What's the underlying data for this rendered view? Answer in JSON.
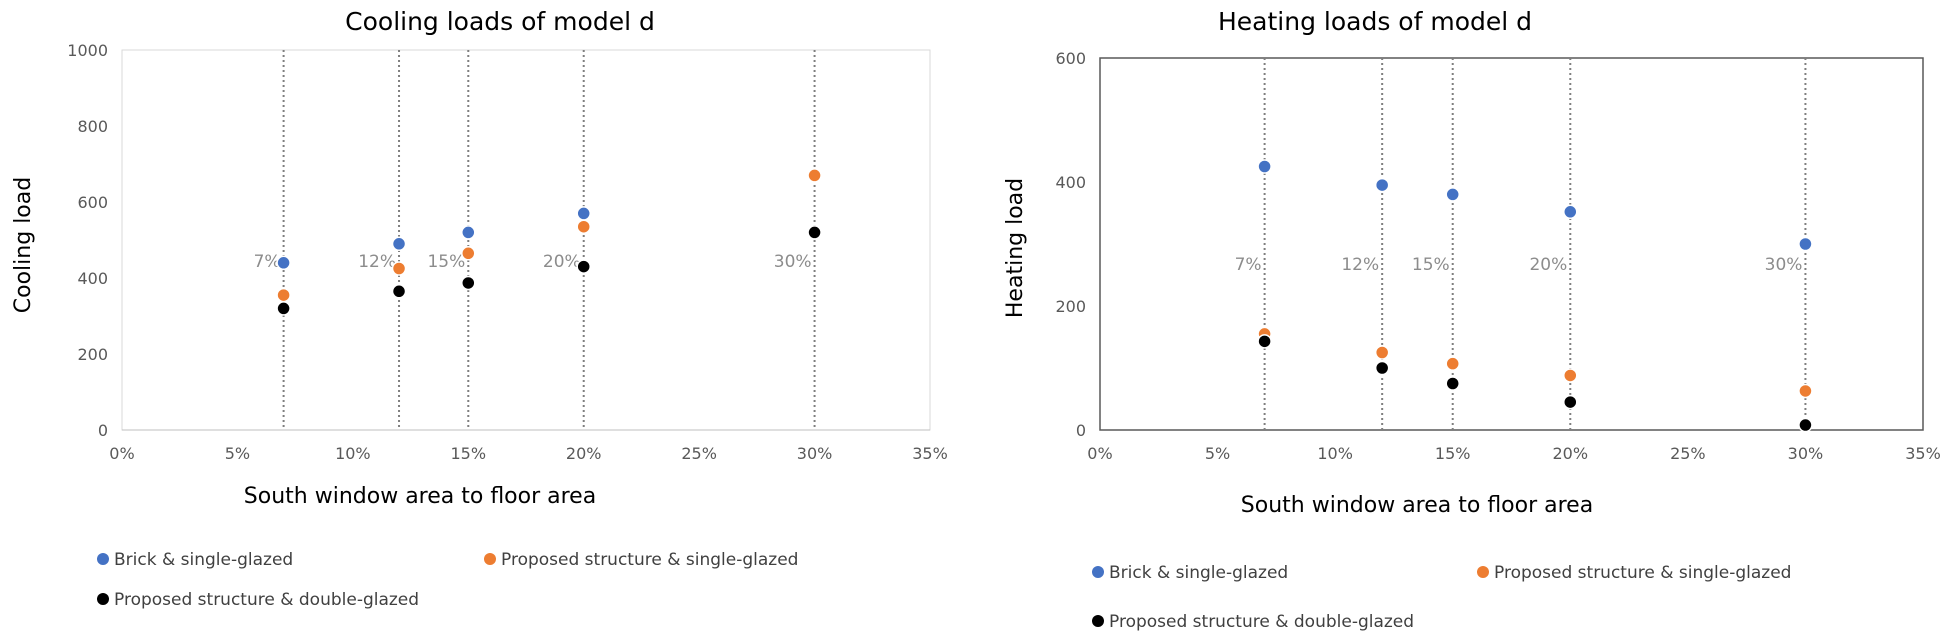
{
  "chart_data": [
    {
      "type": "scatter",
      "title": "Cooling loads of model d",
      "xlabel": "South window area to floor area",
      "ylabel": "Cooling load",
      "xlim": [
        0,
        35
      ],
      "ylim": [
        0,
        1000
      ],
      "x_ticks": [
        "0%",
        "5%",
        "10%",
        "15%",
        "20%",
        "25%",
        "30%",
        "35%"
      ],
      "x_tick_values": [
        0,
        5,
        10,
        15,
        20,
        25,
        30,
        35
      ],
      "y_ticks": [
        "0",
        "200",
        "400",
        "600",
        "800",
        "1000"
      ],
      "y_tick_values": [
        0,
        200,
        400,
        600,
        800,
        1000
      ],
      "grid": false,
      "legend_position": "bottom",
      "reference_lines": [
        {
          "x": 7,
          "label": "7%"
        },
        {
          "x": 12,
          "label": "12%"
        },
        {
          "x": 15,
          "label": "15%"
        },
        {
          "x": 20,
          "label": "20%"
        },
        {
          "x": 30,
          "label": "30%"
        }
      ],
      "x": [
        7,
        12,
        15,
        20,
        30
      ],
      "series": [
        {
          "name": "Brick & single-glazed",
          "color": "#4472c4",
          "values": [
            440,
            490,
            520,
            570,
            670
          ]
        },
        {
          "name": "Proposed structure & single-glazed",
          "color": "#ed7d31",
          "values": [
            355,
            425,
            465,
            535,
            670
          ]
        },
        {
          "name": "Proposed structure & double-glazed",
          "color": "#000000",
          "values": [
            320,
            365,
            387,
            430,
            520
          ]
        }
      ]
    },
    {
      "type": "scatter",
      "title": "Heating loads of model d",
      "xlabel": "South window area to floor area",
      "ylabel": "Heating load",
      "xlim": [
        0,
        35
      ],
      "ylim": [
        0,
        600
      ],
      "x_ticks": [
        "0%",
        "5%",
        "10%",
        "15%",
        "20%",
        "25%",
        "30%",
        "35%"
      ],
      "x_tick_values": [
        0,
        5,
        10,
        15,
        20,
        25,
        30,
        35
      ],
      "y_ticks": [
        "0",
        "200",
        "400",
        "600"
      ],
      "y_tick_values": [
        0,
        200,
        400,
        600
      ],
      "grid": false,
      "legend_position": "bottom",
      "reference_lines": [
        {
          "x": 7,
          "label": "7%"
        },
        {
          "x": 12,
          "label": "12%"
        },
        {
          "x": 15,
          "label": "15%"
        },
        {
          "x": 20,
          "label": "20%"
        },
        {
          "x": 30,
          "label": "30%"
        }
      ],
      "x": [
        7,
        12,
        15,
        20,
        30
      ],
      "series": [
        {
          "name": "Brick & single-glazed",
          "color": "#4472c4",
          "values": [
            425,
            395,
            380,
            352,
            300
          ]
        },
        {
          "name": "Proposed structure & single-glazed",
          "color": "#ed7d31",
          "values": [
            155,
            125,
            107,
            88,
            63
          ]
        },
        {
          "name": "Proposed structure & double-glazed",
          "color": "#000000",
          "values": [
            143,
            100,
            75,
            45,
            8
          ]
        }
      ]
    }
  ]
}
